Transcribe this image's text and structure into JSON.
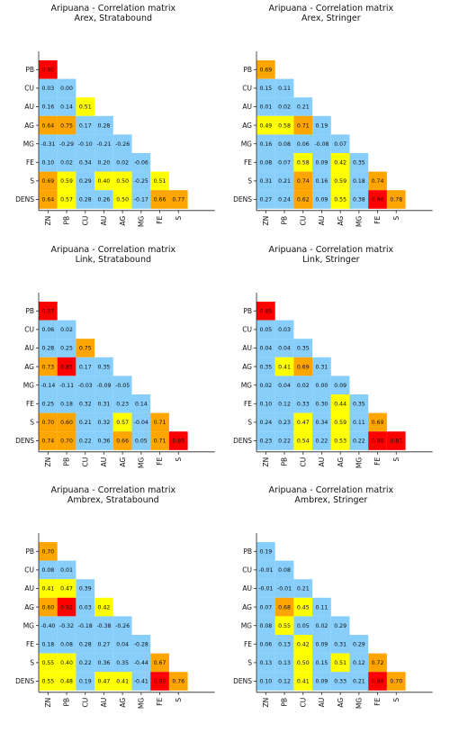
{
  "figure_title_prefix": "Aripuana - Correlation matrix",
  "color_scale": {
    "low": "#87cefa",
    "mid": "#ffff00",
    "high": "#ffa500",
    "top": "#ff0000"
  },
  "chart_data": [
    {
      "type": "heatmap",
      "title": "Aripuana - Correlation matrix",
      "subtitle": "Arex, Stratabound",
      "variables": [
        "ZN",
        "PB",
        "CU",
        "AU",
        "AG",
        "MG",
        "FE",
        "S",
        "DENS"
      ],
      "rows": [
        "PB",
        "CU",
        "AU",
        "AG",
        "MG",
        "FE",
        "S",
        "DENS"
      ],
      "columns": [
        "ZN",
        "PB",
        "CU",
        "AU",
        "AG",
        "MG",
        "FE",
        "S"
      ],
      "values": [
        [
          "0.80"
        ],
        [
          "0.03",
          "0.00"
        ],
        [
          "0.16",
          "0.14",
          "0.51"
        ],
        [
          "0.64",
          "0.75",
          "0.17",
          "0.28"
        ],
        [
          "-0.31",
          "-0.29",
          "-0.10",
          "-0.21",
          "-0.26"
        ],
        [
          "0.10",
          "0.02",
          "0.34",
          "0.20",
          "0.02",
          "-0.06"
        ],
        [
          "0.69",
          "0.59",
          "0.29",
          "0.40",
          "0.50",
          "-0.25",
          "0.51"
        ],
        [
          "0.64",
          "0.57",
          "0.28",
          "0.26",
          "0.50",
          "-0.17",
          "0.66",
          "0.77"
        ]
      ]
    },
    {
      "type": "heatmap",
      "title": "Aripuana - Correlation matrix",
      "subtitle": "Arex, Stringer",
      "variables": [
        "ZN",
        "PB",
        "CU",
        "AU",
        "AG",
        "MG",
        "FE",
        "S",
        "DENS"
      ],
      "rows": [
        "PB",
        "CU",
        "AU",
        "AG",
        "MG",
        "FE",
        "S",
        "DENS"
      ],
      "columns": [
        "ZN",
        "PB",
        "CU",
        "AU",
        "AG",
        "MG",
        "FE",
        "S"
      ],
      "values": [
        [
          "0.69"
        ],
        [
          "0.15",
          "0.11"
        ],
        [
          "0.01",
          "0.02",
          "0.21"
        ],
        [
          "0.49",
          "0.58",
          "0.71",
          "0.19"
        ],
        [
          "0.16",
          "0.08",
          "0.06",
          "-0.08",
          "0.07"
        ],
        [
          "0.08",
          "0.07",
          "0.58",
          "0.09",
          "0.42",
          "0.35"
        ],
        [
          "0.31",
          "0.21",
          "0.74",
          "0.16",
          "0.59",
          "0.18",
          "0.74"
        ],
        [
          "0.27",
          "0.24",
          "0.62",
          "0.09",
          "0.55",
          "0.38",
          "0.86",
          "0.78"
        ]
      ]
    },
    {
      "type": "heatmap",
      "title": "Aripuana - Correlation matrix",
      "subtitle": "Link, Stratabound",
      "variables": [
        "ZN",
        "PB",
        "CU",
        "AU",
        "AG",
        "MG",
        "FE",
        "S",
        "DENS"
      ],
      "rows": [
        "PB",
        "CU",
        "AU",
        "AG",
        "MG",
        "FE",
        "S",
        "DENS"
      ],
      "columns": [
        "ZN",
        "PB",
        "CU",
        "AU",
        "AG",
        "MG",
        "FE",
        "S"
      ],
      "values": [
        [
          "0.87"
        ],
        [
          "0.06",
          "0.02"
        ],
        [
          "0.28",
          "0.25",
          "0.75"
        ],
        [
          "0.73",
          "0.85",
          "0.17",
          "0.35"
        ],
        [
          "-0.14",
          "-0.11",
          "-0.03",
          "-0.09",
          "-0.05"
        ],
        [
          "0.25",
          "0.18",
          "0.32",
          "0.31",
          "0.23",
          "0.14"
        ],
        [
          "0.70",
          "0.60",
          "0.21",
          "0.32",
          "0.57",
          "-0.04",
          "0.71"
        ],
        [
          "0.74",
          "0.70",
          "0.22",
          "0.36",
          "0.66",
          "0.05",
          "0.71",
          "0.85"
        ]
      ]
    },
    {
      "type": "heatmap",
      "title": "Aripuana - Correlation matrix",
      "subtitle": "Link, Stringer",
      "variables": [
        "ZN",
        "PB",
        "CU",
        "AU",
        "AG",
        "MG",
        "FE",
        "S",
        "DENS"
      ],
      "rows": [
        "PB",
        "CU",
        "AU",
        "AG",
        "MG",
        "FE",
        "S",
        "DENS"
      ],
      "columns": [
        "ZN",
        "PB",
        "CU",
        "AU",
        "AG",
        "MG",
        "FE",
        "S"
      ],
      "values": [
        [
          "0.85"
        ],
        [
          "0.05",
          "0.03"
        ],
        [
          "0.04",
          "0.04",
          "0.35"
        ],
        [
          "0.35",
          "0.41",
          "0.69",
          "0.31"
        ],
        [
          "0.02",
          "0.04",
          "0.02",
          "0.00",
          "0.09"
        ],
        [
          "0.10",
          "0.12",
          "0.33",
          "0.30",
          "0.44",
          "0.35"
        ],
        [
          "0.24",
          "0.23",
          "0.47",
          "0.34",
          "0.59",
          "0.11",
          "0.69"
        ],
        [
          "0.23",
          "0.22",
          "0.54",
          "0.22",
          "0.53",
          "0.22",
          "0.86",
          "0.81"
        ]
      ]
    },
    {
      "type": "heatmap",
      "title": "Aripuana - Correlation matrix",
      "subtitle": "Ambrex, Stratabound",
      "variables": [
        "ZN",
        "PB",
        "CU",
        "AU",
        "AG",
        "MG",
        "FE",
        "S",
        "DENS"
      ],
      "rows": [
        "PB",
        "CU",
        "AU",
        "AG",
        "MG",
        "FE",
        "S",
        "DENS"
      ],
      "columns": [
        "ZN",
        "PB",
        "CU",
        "AU",
        "AG",
        "MG",
        "FE",
        "S"
      ],
      "values": [
        [
          "0.70"
        ],
        [
          "0.08",
          "0.01"
        ],
        [
          "0.41",
          "0.47",
          "0.39"
        ],
        [
          "0.60",
          "0.92",
          "0.03",
          "0.42"
        ],
        [
          "-0.40",
          "-0.32",
          "-0.18",
          "-0.38",
          "-0.26"
        ],
        [
          "0.18",
          "0.08",
          "0.28",
          "0.27",
          "0.04",
          "-0.28"
        ],
        [
          "0.55",
          "0.40",
          "0.22",
          "0.36",
          "0.35",
          "-0.44",
          "0.67"
        ],
        [
          "0.55",
          "0.48",
          "0.19",
          "0.47",
          "0.41",
          "-0.41",
          "0.80",
          "0.76"
        ]
      ]
    },
    {
      "type": "heatmap",
      "title": "Aripuana - Correlation matrix",
      "subtitle": "Ambrex, Stringer",
      "variables": [
        "ZN",
        "PB",
        "CU",
        "AU",
        "AG",
        "MG",
        "FE",
        "S",
        "DENS"
      ],
      "rows": [
        "PB",
        "CU",
        "AU",
        "AG",
        "MG",
        "FE",
        "S",
        "DENS"
      ],
      "columns": [
        "ZN",
        "PB",
        "CU",
        "AU",
        "AG",
        "MG",
        "FE",
        "S"
      ],
      "values": [
        [
          "0.19"
        ],
        [
          "-0.01",
          "0.08"
        ],
        [
          "-0.01",
          "-0.01",
          "0.21"
        ],
        [
          "0.07",
          "0.68",
          "0.45",
          "0.11"
        ],
        [
          "0.08",
          "0.55",
          "0.05",
          "0.02",
          "0.29"
        ],
        [
          "0.06",
          "0.13",
          "0.42",
          "0.09",
          "0.31",
          "0.29"
        ],
        [
          "0.13",
          "0.13",
          "0.50",
          "0.15",
          "0.51",
          "0.12",
          "0.72"
        ],
        [
          "0.10",
          "0.12",
          "0.41",
          "0.09",
          "0.33",
          "0.21",
          "0.86",
          "0.70"
        ]
      ]
    }
  ]
}
